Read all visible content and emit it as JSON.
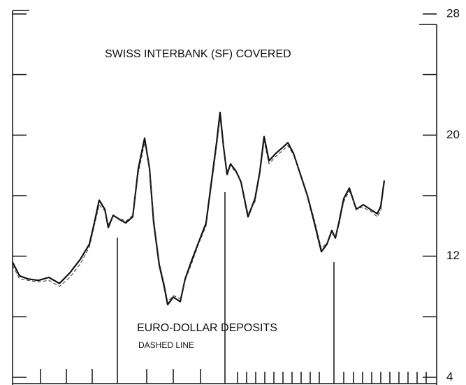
{
  "chart_data": {
    "type": "line",
    "title": "SWISS INTERBANK (SF) COVERED",
    "annotations": [
      "EURO-DOLLAR DEPOSITS",
      "DASHED LINE"
    ],
    "x": [
      0,
      10,
      22,
      37,
      52,
      67,
      82,
      97,
      110,
      117,
      124,
      132,
      137,
      144,
      154,
      162,
      172,
      180,
      189,
      196,
      202,
      210,
      217,
      222,
      230,
      240,
      247,
      257,
      267,
      277,
      284,
      292,
      297,
      302,
      307,
      312,
      320,
      327,
      337,
      347,
      354,
      360,
      367,
      377,
      387,
      394,
      402,
      412,
      422,
      432,
      442,
      450,
      457,
      462,
      467,
      474,
      482,
      492,
      502,
      512,
      522,
      527,
      532
    ],
    "xlim": [
      0,
      607
    ],
    "ylim": [
      4,
      28
    ],
    "yticks": [
      4,
      12,
      20,
      28
    ],
    "minor_yticks": [
      8,
      16,
      24
    ],
    "series": [
      {
        "name": "SWISS INTERBANK (SF) COVERED",
        "color": "#111111",
        "dashed": false,
        "values": [
          11.6,
          10.7,
          10.5,
          10.4,
          10.6,
          10.2,
          10.9,
          11.8,
          12.8,
          14.2,
          15.7,
          15.1,
          13.9,
          14.7,
          14.4,
          14.2,
          14.6,
          17.8,
          19.8,
          17.8,
          14.2,
          11.4,
          10.0,
          8.8,
          9.3,
          9.0,
          10.5,
          11.8,
          13.0,
          14.2,
          16.7,
          19.5,
          21.5,
          19.2,
          17.4,
          18.1,
          17.6,
          16.9,
          14.6,
          15.8,
          17.6,
          19.9,
          18.3,
          18.8,
          19.2,
          19.5,
          18.8,
          17.4,
          16.0,
          14.2,
          12.3,
          12.8,
          13.7,
          13.2,
          14.2,
          15.8,
          16.5,
          15.1,
          15.4,
          15.1,
          14.8,
          15.3,
          17.0
        ]
      },
      {
        "name": "EURO-DOLLAR DEPOSITS",
        "color": "#333333",
        "dashed": true,
        "values": [
          11.4,
          10.5,
          10.4,
          10.3,
          10.4,
          10.0,
          10.6,
          11.5,
          12.6,
          14.0,
          15.4,
          15.0,
          14.1,
          14.6,
          14.5,
          14.3,
          14.7,
          17.5,
          19.5,
          17.9,
          14.5,
          11.6,
          10.2,
          9.0,
          9.4,
          9.2,
          10.4,
          11.6,
          12.9,
          14.0,
          16.4,
          19.2,
          21.1,
          19.0,
          17.6,
          18.0,
          17.5,
          17.0,
          14.8,
          15.6,
          17.4,
          19.6,
          18.1,
          18.6,
          19.0,
          19.3,
          18.7,
          17.5,
          16.1,
          14.4,
          12.5,
          12.9,
          13.5,
          13.3,
          14.0,
          15.6,
          16.3,
          15.2,
          15.2,
          15.0,
          14.6,
          15.0,
          16.8
        ]
      }
    ]
  }
}
